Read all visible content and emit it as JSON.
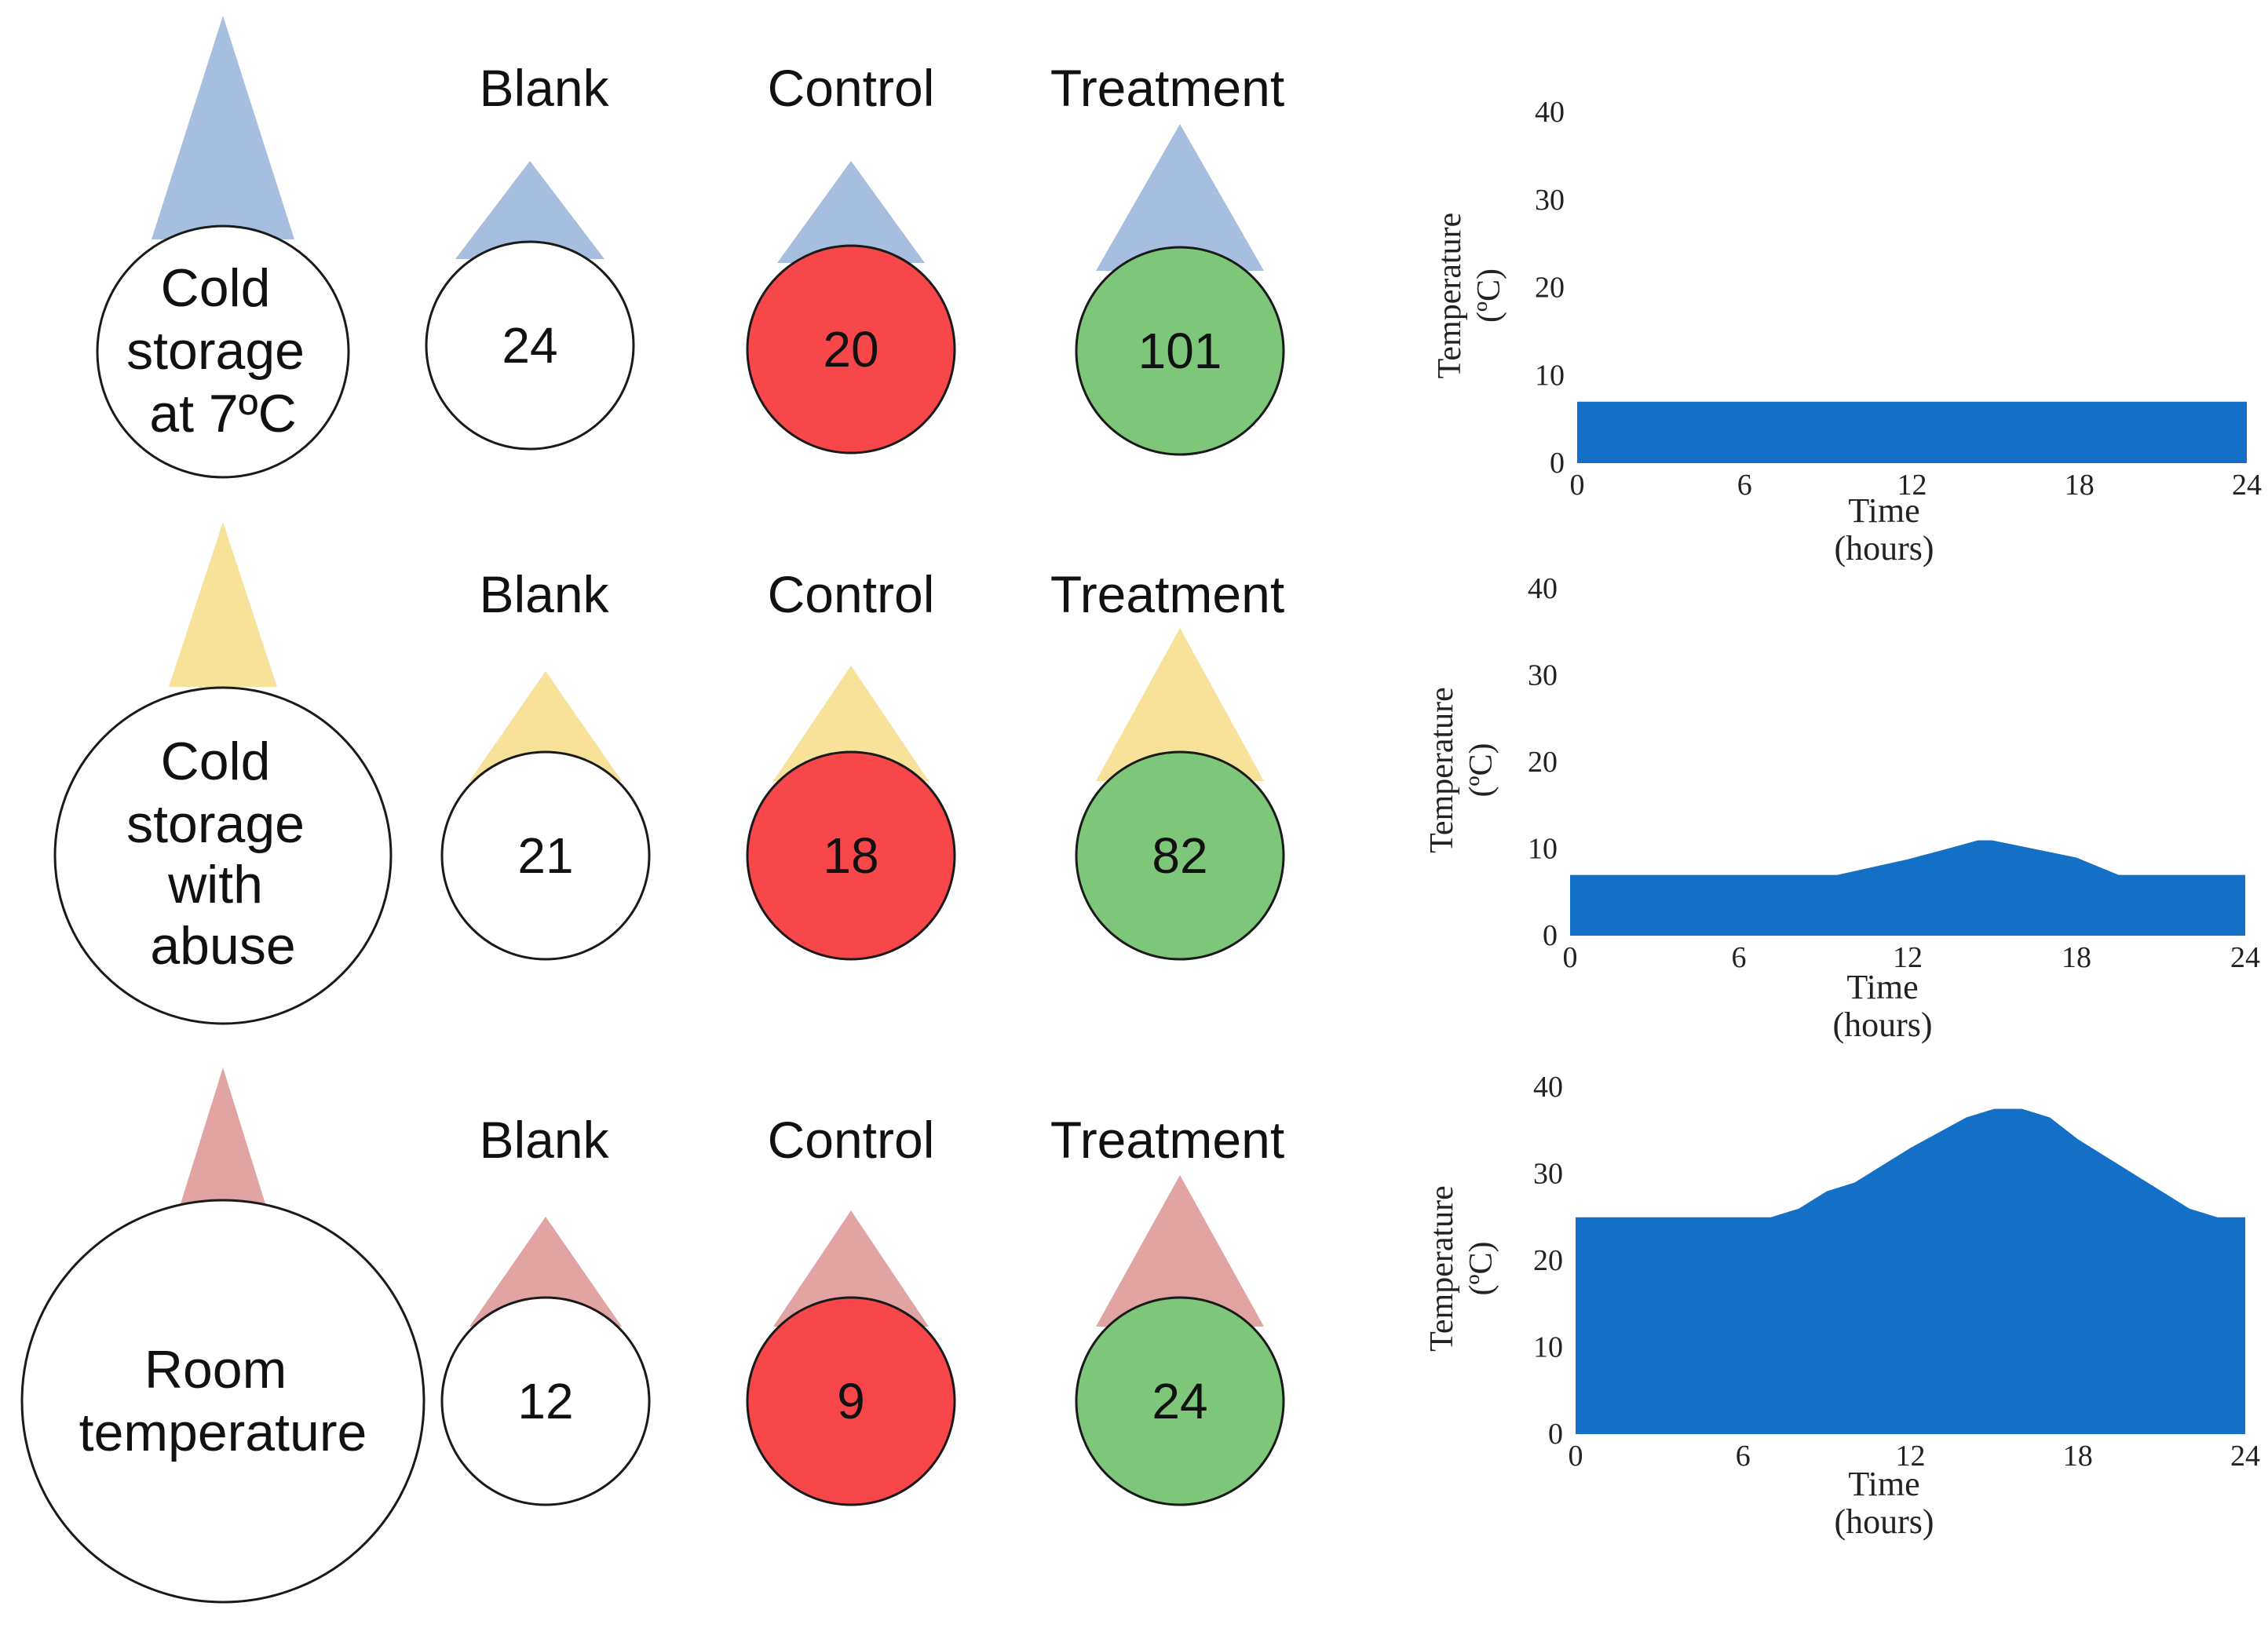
{
  "colors": {
    "cold": "#a6bfe0",
    "abuse": "#f8e29a",
    "room": "#e2a3a3",
    "blank_fill": "#ffffff",
    "control_fill": "#f7474a",
    "treatment_fill": "#7ec77a",
    "chart_fill": "#1470c6",
    "outline": "#1a1a1a"
  },
  "column_headers": {
    "blank": "Blank",
    "control": "Control",
    "treatment": "Treatment"
  },
  "rows": [
    {
      "condition_lines": [
        "Cold",
        "storage",
        "at 7ºC"
      ],
      "tone": "cold",
      "blank": "24",
      "control": "20",
      "treatment": "101",
      "blank_relative": 0.24,
      "control_relative": 0.2,
      "treatment_relative": 1.0
    },
    {
      "condition_lines": [
        "Cold",
        "storage",
        "with",
        "abuse"
      ],
      "tone": "abuse",
      "blank": "21",
      "control": "18",
      "treatment": "82",
      "blank_relative": 0.21,
      "control_relative": 0.18,
      "treatment_relative": 0.82
    },
    {
      "condition_lines": [
        "Room",
        "temperature"
      ],
      "tone": "room",
      "blank": "12",
      "control": "9",
      "treatment": "24",
      "blank_relative": 0.12,
      "control_relative": 0.09,
      "treatment_relative": 0.24
    }
  ],
  "chart_data": [
    {
      "type": "area",
      "title": "",
      "xlabel": "Time (hours)",
      "xlabel_lines": [
        "Time",
        "(hours)"
      ],
      "ylabel_lines": [
        "Temperature",
        "(ºC)"
      ],
      "xticks": [
        "0",
        "6",
        "12",
        "18",
        "24"
      ],
      "yticks": [
        "0",
        "10",
        "20",
        "30",
        "40"
      ],
      "xlim": [
        0,
        24
      ],
      "ylim": [
        0,
        40
      ],
      "grid": false,
      "x": [
        0,
        24
      ],
      "y": [
        7,
        7
      ]
    },
    {
      "type": "area",
      "title": "",
      "xlabel": "Time (hours)",
      "xlabel_lines": [
        "Time",
        "(hours)"
      ],
      "ylabel_lines": [
        "Temperature",
        "(ºC)"
      ],
      "xticks": [
        "0",
        "6",
        "12",
        "18",
        "24"
      ],
      "yticks": [
        "0",
        "10",
        "20",
        "30",
        "40"
      ],
      "xlim": [
        0,
        24
      ],
      "ylim": [
        0,
        40
      ],
      "grid": false,
      "x": [
        0,
        9.5,
        12,
        13.5,
        14.5,
        15,
        18,
        19.5,
        24
      ],
      "y": [
        7,
        7,
        8.8,
        10.1,
        11,
        11,
        9,
        7,
        7
      ]
    },
    {
      "type": "area",
      "title": "",
      "xlabel": "Time (hours)",
      "xlabel_lines": [
        "Time",
        "(hours)"
      ],
      "ylabel_lines": [
        "Temperature",
        "(ºC)"
      ],
      "xticks": [
        "0",
        "6",
        "12",
        "18",
        "24"
      ],
      "yticks": [
        "0",
        "10",
        "20",
        "30",
        "40"
      ],
      "xlim": [
        0,
        24
      ],
      "ylim": [
        0,
        40
      ],
      "grid": false,
      "x": [
        0,
        6,
        7,
        8,
        9,
        10,
        12,
        14,
        15,
        16,
        17,
        18,
        20,
        22,
        23,
        24
      ],
      "y": [
        25,
        25,
        25,
        26,
        28,
        29,
        33,
        36.5,
        37.5,
        37.5,
        36.5,
        34,
        30,
        26,
        25,
        25
      ]
    }
  ]
}
